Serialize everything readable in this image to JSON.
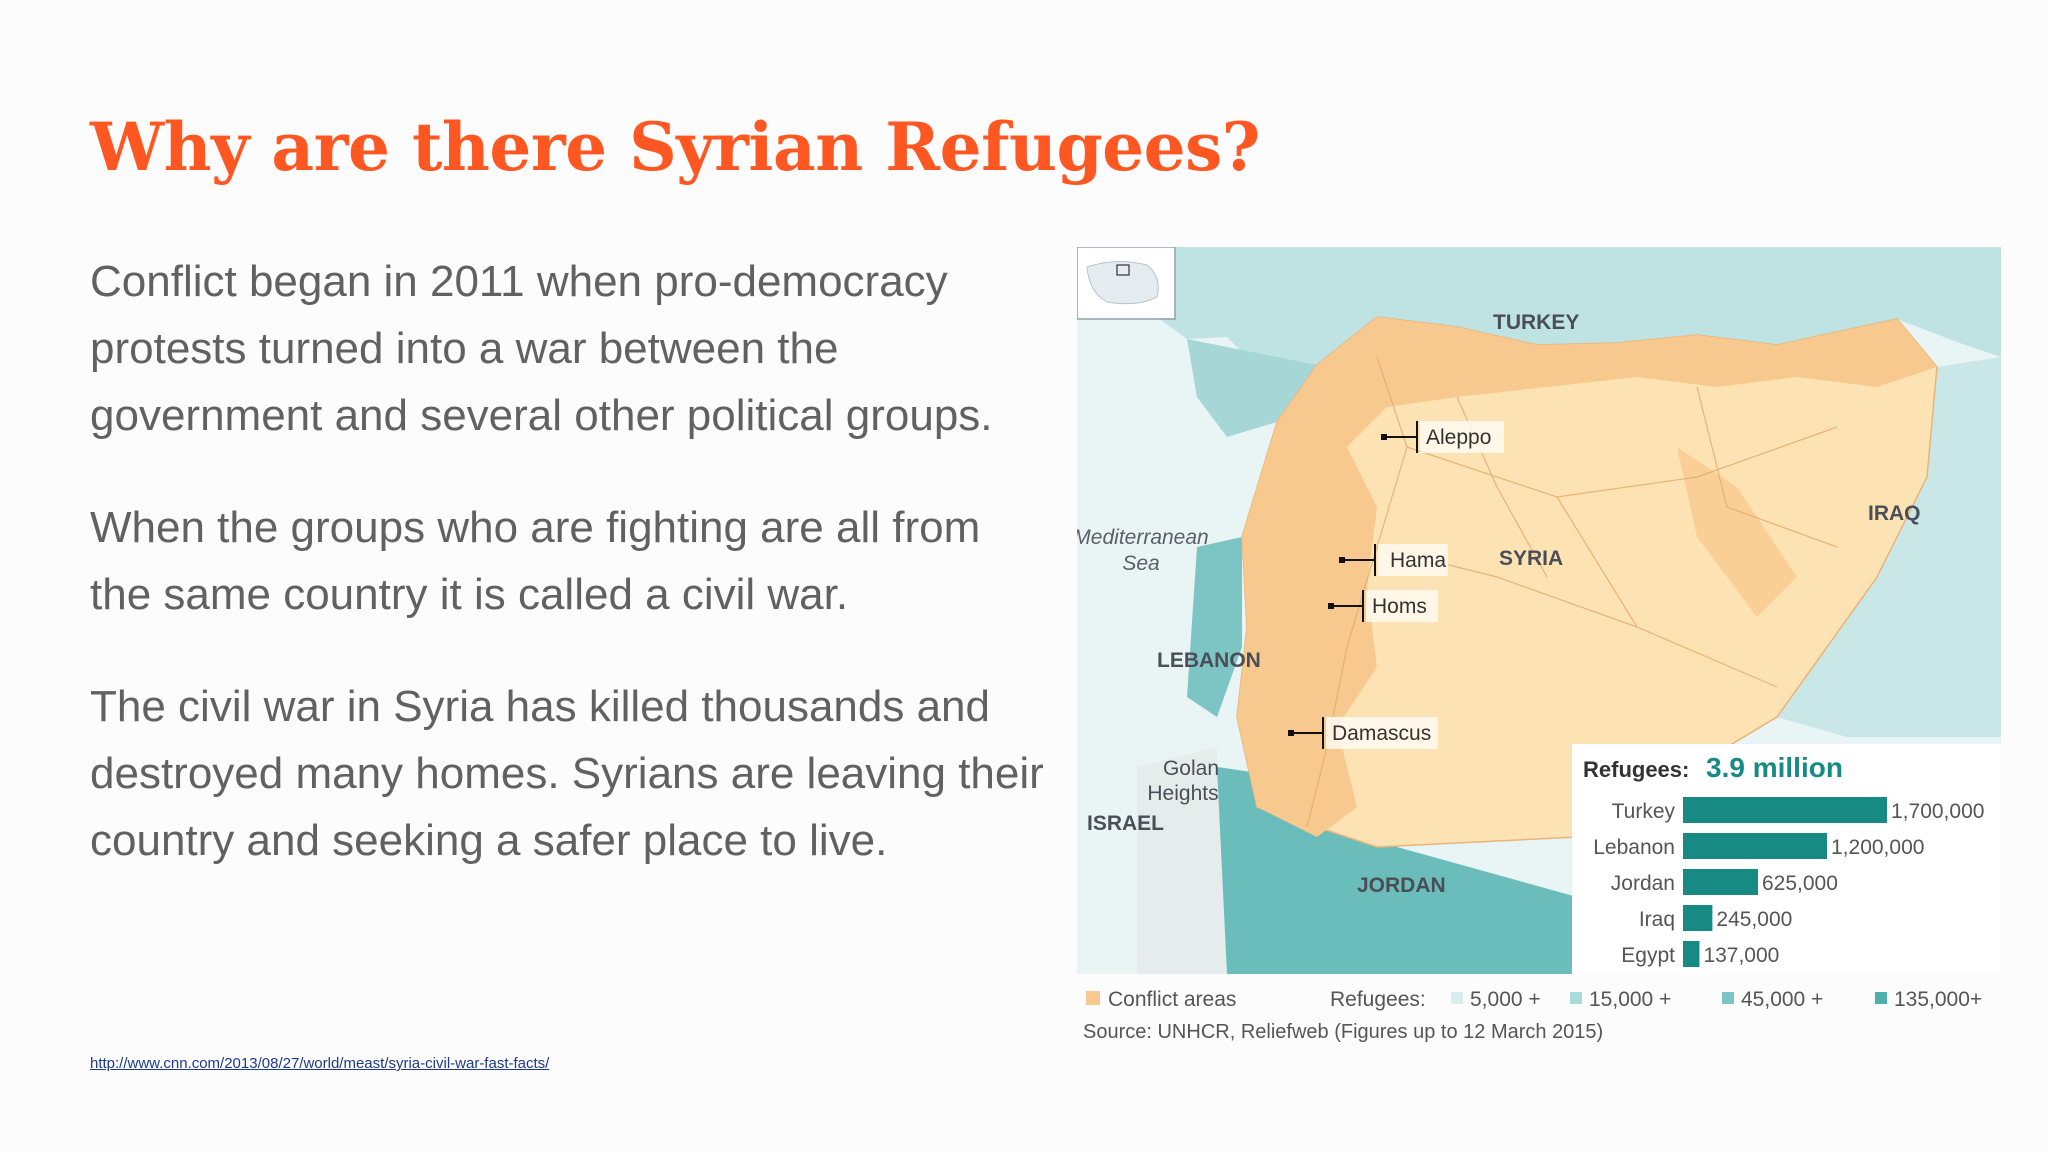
{
  "title": "Why are there Syrian Refugees?",
  "paragraphs": [
    "Conflict began in 2011 when pro-democracy protests turned into a war between the government and several other political groups.",
    "When the groups who are fighting are all from the same country it is called a civil war.",
    "The civil war in Syria has killed thousands and destroyed many homes. Syrians are leaving their country and seeking a safer place to live."
  ],
  "source_url": "http://www.cnn.com/2013/08/27/world/meast/syria-civil-war-fast-facts/",
  "map": {
    "countries": {
      "turkey": "TURKEY",
      "iraq": "IRAQ",
      "syria": "SYRIA",
      "lebanon": "LEBANON",
      "jordan": "JORDAN",
      "israel": "ISRAEL"
    },
    "sea_line1": "Mediterranean",
    "sea_line2": "Sea",
    "golan_line1": "Golan",
    "golan_line2": "Heights",
    "cities": {
      "aleppo": "Aleppo",
      "hama": "Hama",
      "homs": "Homs",
      "damascus": "Damascus"
    },
    "refugees_label": "Refugees:",
    "refugees_total": "3.9 million",
    "bars": [
      {
        "country": "Turkey",
        "value": 1700000,
        "label": "1,700,000"
      },
      {
        "country": "Lebanon",
        "value": 1200000,
        "label": "1,200,000"
      },
      {
        "country": "Jordan",
        "value": 625000,
        "label": "625,000"
      },
      {
        "country": "Iraq",
        "value": 245000,
        "label": "245,000"
      },
      {
        "country": "Egypt",
        "value": 137000,
        "label": "137,000"
      }
    ],
    "legend": {
      "conflict": "Conflict areas",
      "refugees": "Refugees:",
      "tier1": "5,000 +",
      "tier2": "15,000 +",
      "tier3": "45,000 +",
      "tier4": "135,000+"
    },
    "source": "Source: UNHCR, Reliefweb (Figures up to 12 March 2015)"
  },
  "colors": {
    "title": "#fe5722",
    "body_text": "#616161",
    "link": "#1d3a8a",
    "conflict": "#f7c98e",
    "syria_fill": "#fde3b4",
    "refugee_bar": "#178a84",
    "total_text": "#178a84",
    "tier1": "#d9eeee",
    "tier2": "#a9dada",
    "tier3": "#7cc5c4",
    "tier4": "#4eb0ad"
  }
}
